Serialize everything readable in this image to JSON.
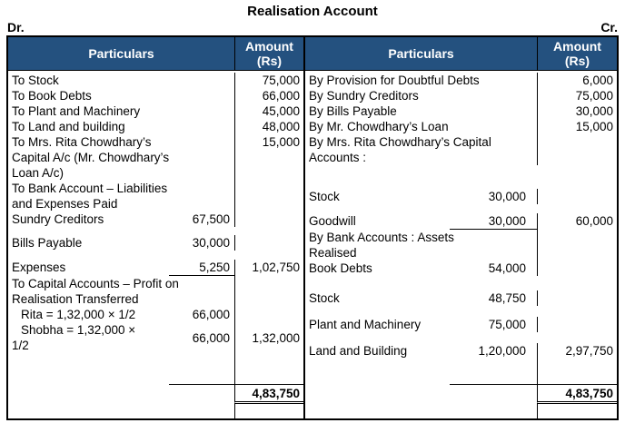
{
  "title": "Realisation Account",
  "dr_label": "Dr.",
  "cr_label": "Cr.",
  "colors": {
    "header_bg": "#24517F",
    "header_text": "#FFFFFF",
    "border": "#000000"
  },
  "column_headers": {
    "particulars": "Particulars",
    "amount": "Amount\n(Rs)"
  },
  "left": {
    "rows": [
      {
        "text": "To Stock",
        "amount": "75,000"
      },
      {
        "text": "To Book Debts",
        "amount": "66,000"
      },
      {
        "text": "To Plant and Machinery",
        "amount": "45,000"
      },
      {
        "text": "To Land and building",
        "amount": "48,000"
      },
      {
        "text": "To Mrs. Rita Chowdhary’s\nCapital A/c (Mr. Chowdhary’s\nLoan A/c)",
        "amount": "15,000"
      },
      {
        "text": "To Bank Account – Liabilities\nand Expenses Paid"
      },
      {
        "text": "Sundry Creditors",
        "sub": "67,500"
      },
      {
        "text": "Bills Payable",
        "sub": "30,000",
        "gap": 9
      },
      {
        "text": "Expenses",
        "sub": "5,250",
        "amount": "1,02,750",
        "rule": true,
        "gap": 10
      },
      {
        "text": "To Capital Accounts – Profit on\nRealisation Transferred"
      },
      {
        "text": "Rita = 1,32,000 × 1/2",
        "sub": "66,000",
        "indent": true
      },
      {
        "text": "Shobha = 1,32,000 ×\n1/2",
        "sub": "66,000",
        "amount": "1,32,000",
        "indent": true,
        "center": true
      }
    ],
    "total": "4,83,750"
  },
  "right": {
    "rows": [
      {
        "text": "By Provision for Doubtful Debts",
        "amount": "6,000"
      },
      {
        "text": "By Sundry Creditors",
        "amount": "75,000"
      },
      {
        "text": "By Bills Payable",
        "amount": "30,000"
      },
      {
        "text": "By Mr. Chowdhary’s Loan",
        "amount": "15,000"
      },
      {
        "text": "By Mrs. Rita Chowdhary’s Capital\nAccounts :"
      },
      {
        "text": "Stock",
        "sub": "30,000",
        "gap": 26
      },
      {
        "text": "Goodwill",
        "sub": "30,000",
        "amount": "60,000",
        "rule": true,
        "gap": 10
      },
      {
        "text": "By Bank Accounts : Assets\nRealised"
      },
      {
        "text": "Book Debts",
        "sub": "54,000"
      },
      {
        "text": "Stock",
        "sub": "48,750",
        "gap": 16
      },
      {
        "text": "Plant and Machinery",
        "sub": "75,000",
        "gap": 12
      },
      {
        "text": "Land and Building",
        "sub": "1,20,000",
        "amount": "2,97,750",
        "gap": 12
      }
    ],
    "total": "4,83,750"
  }
}
